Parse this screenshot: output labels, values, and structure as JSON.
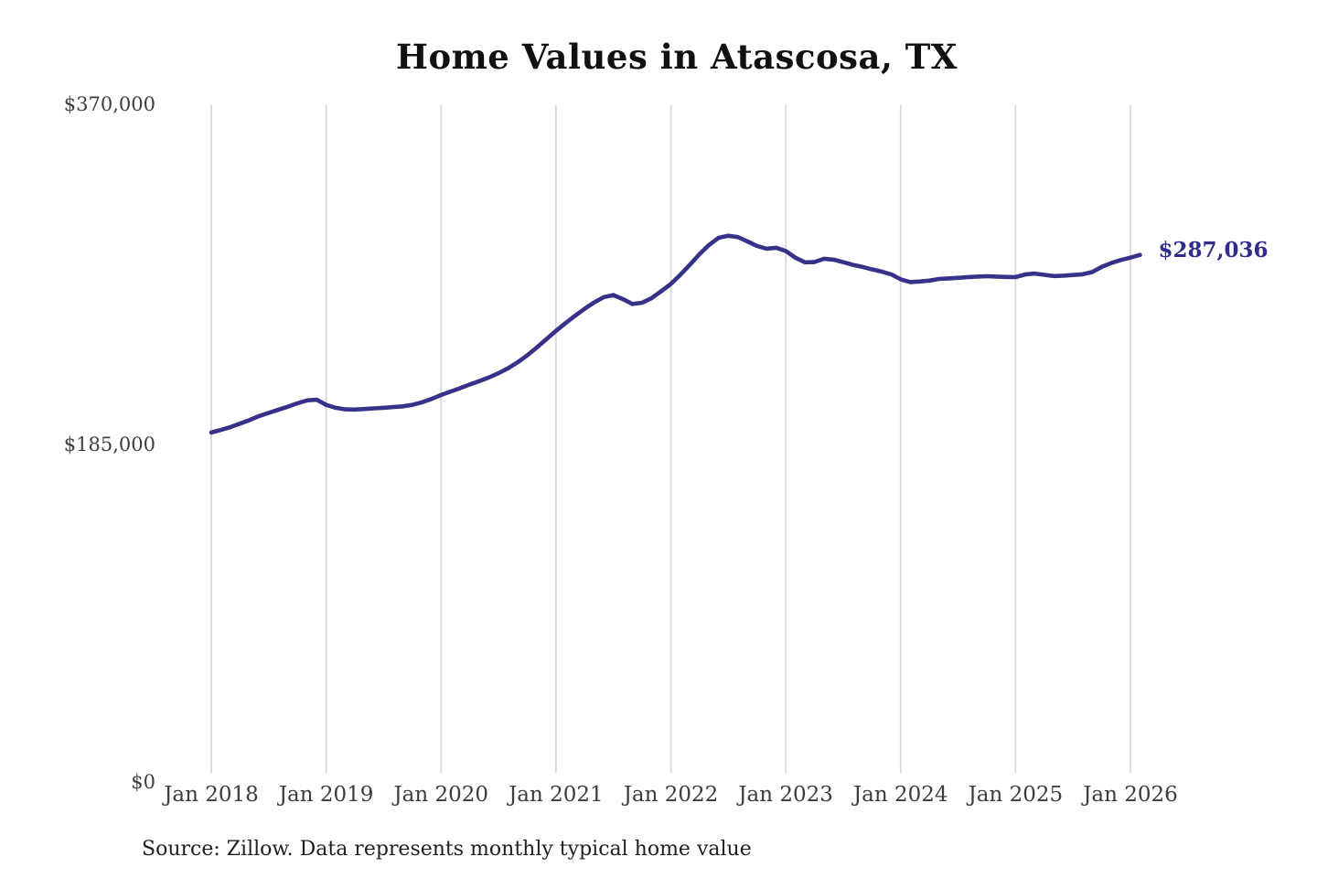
{
  "chart_data": {
    "type": "line",
    "title": "Home Values in Atascosa, TX",
    "source": "Source: Zillow. Data represents monthly typical home value",
    "end_label": "$287,036",
    "latest_value": 287036,
    "x_tick_labels": [
      "Jan 2018",
      "Jan 2019",
      "Jan 2020",
      "Jan 2021",
      "Jan 2022",
      "Jan 2023",
      "Jan 2024",
      "Jan 2025",
      "Jan 2026"
    ],
    "y_tick_labels": [
      "$0",
      "$185,000",
      "$370,000"
    ],
    "ylim": [
      0,
      370000
    ],
    "xlabel": "",
    "ylabel": "",
    "frequency": "monthly",
    "x_start": "Jan 2018",
    "x_end": "Feb 2026",
    "grid": "vertical-only",
    "legend": "none",
    "series": [
      {
        "name": "Typical home value",
        "values": [
          188600,
          190000,
          191600,
          193500,
          195500,
          197700,
          199500,
          201200,
          202900,
          204800,
          206400,
          206800,
          203900,
          202300,
          201400,
          201300,
          201600,
          202000,
          202300,
          202700,
          203100,
          203900,
          205300,
          207200,
          209400,
          211300,
          213200,
          215200,
          217100,
          219100,
          221500,
          224200,
          227500,
          231400,
          235700,
          240300,
          244900,
          249200,
          253300,
          257200,
          260700,
          263600,
          264800,
          262500,
          259800,
          260500,
          263100,
          266900,
          270900,
          276100,
          281600,
          287500,
          292600,
          296500,
          297600,
          296900,
          294500,
          292000,
          290500,
          291000,
          289200,
          285500,
          282900,
          283100,
          284900,
          284400,
          283000,
          281500,
          280400,
          279000,
          277800,
          276300,
          273500,
          272000,
          272300,
          272800,
          273700,
          274000,
          274300,
          274700,
          275000,
          275200,
          275000,
          274800,
          274700,
          276200,
          276700,
          276000,
          275300,
          275500,
          275900,
          276300,
          277500,
          280400,
          282500,
          284200,
          285500,
          287036
        ]
      }
    ],
    "colors": {
      "line": "#363189",
      "end_label": "#2f2c8c",
      "gridline": "#d9d9d9",
      "title": "#111111",
      "axis_label": "#3c3c3c",
      "source_text": "#1f1f1f"
    }
  }
}
